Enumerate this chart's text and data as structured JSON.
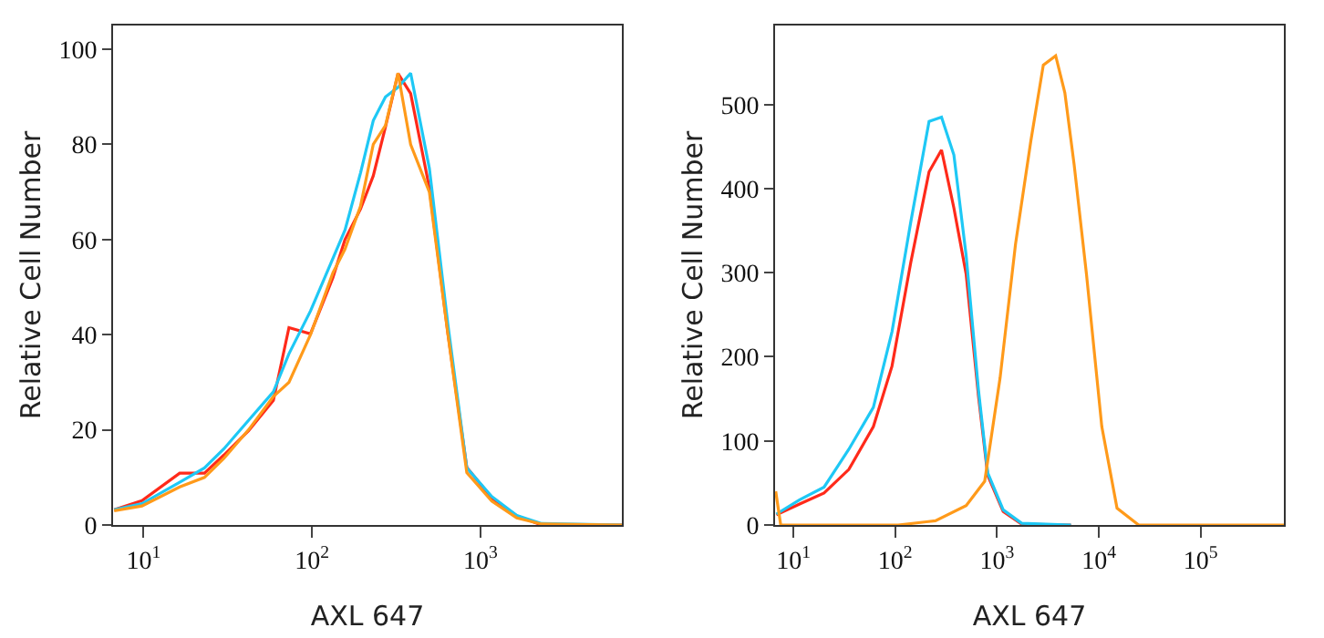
{
  "chart_data": [
    {
      "type": "line",
      "xlabel": "AXL 647",
      "ylabel": "Relative Cell Number",
      "log": "x",
      "grid": false,
      "marker": "none",
      "line_style": "solid",
      "xlim": [
        6.6,
        6900
      ],
      "ylim": [
        0,
        105
      ],
      "xticks": [
        {
          "value": 10,
          "label": "10$^{1}$"
        },
        {
          "value": 100,
          "label": "10$^{2}$"
        },
        {
          "value": 1000,
          "label": "10$^{3}$"
        }
      ],
      "yticks": [
        0,
        20,
        40,
        60,
        80,
        100
      ],
      "x": [
        6.7,
        9.8,
        16.4,
        23,
        30,
        42,
        59,
        73,
        98,
        133,
        157,
        194,
        231,
        273,
        324,
        385,
        497,
        641,
        829,
        1166,
        1641,
        2307,
        6900
      ],
      "series": [
        {
          "color": "#ff2a1a",
          "values": [
            3.2,
            5.1,
            10.9,
            10.9,
            14.7,
            19.8,
            26.2,
            41.5,
            40.2,
            52,
            60,
            66.4,
            73.4,
            83.7,
            94.9,
            90.7,
            70.9,
            40.2,
            12.1,
            5.7,
            1.9,
            0,
            0
          ]
        },
        {
          "color": "#1ec8f5",
          "values": [
            3.2,
            4.5,
            9,
            12,
            16,
            22,
            28,
            36,
            45,
            56,
            62,
            74,
            85,
            90,
            92,
            95,
            75,
            42,
            12,
            6,
            2,
            0.3,
            0
          ]
        },
        {
          "color": "#ff9a1a",
          "values": [
            3,
            4,
            8,
            10,
            14,
            20,
            27,
            30,
            40,
            53,
            58,
            67,
            80,
            84,
            95,
            80,
            70,
            40,
            11,
            5,
            1.5,
            0.2,
            0
          ]
        }
      ]
    },
    {
      "type": "line",
      "xlabel": "AXL 647",
      "ylabel": "Relative Cell Number",
      "log": "x",
      "grid": false,
      "marker": "none",
      "line_style": "solid",
      "xlim": [
        6.6,
        658000
      ],
      "ylim": [
        0,
        594
      ],
      "xticks": [
        {
          "value": 10,
          "label": "10$^{1}$"
        },
        {
          "value": 100,
          "label": "10$^{2}$"
        },
        {
          "value": 1000,
          "label": "10$^{3}$"
        },
        {
          "value": 10000,
          "label": "10$^{4}$"
        },
        {
          "value": 100000,
          "label": "10$^{5}$"
        }
      ],
      "yticks": [
        0,
        100,
        200,
        300,
        400,
        500
      ],
      "series": [
        {
          "color": "#ff2a1a",
          "x": [
            6.8,
            11.5,
            20,
            35,
            61,
            93,
            142,
            215,
            285,
            377,
            498,
            658,
            811,
            1150,
            1748,
            5330
          ],
          "values": [
            12,
            25,
            38,
            66,
            117,
            189,
            312,
            420,
            446,
            377,
            298,
            153,
            59,
            16,
            1,
            0
          ]
        },
        {
          "color": "#1ec8f5",
          "x": [
            6.8,
            11.5,
            20,
            35,
            61,
            93,
            142,
            215,
            285,
            377,
            498,
            658,
            811,
            1150,
            1748,
            5330
          ],
          "values": [
            13,
            30,
            45,
            90,
            140,
            230,
            360,
            480,
            485,
            440,
            320,
            160,
            62,
            18,
            2,
            0
          ]
        },
        {
          "color": "#ff9a1a",
          "x": [
            6.7,
            7.5,
            107,
            248,
            498,
            757,
            1072,
            1520,
            2150,
            2850,
            3770,
            4640,
            5730,
            7570,
            10700,
            15100,
            24600,
            658000
          ],
          "values": [
            40,
            0,
            0,
            5,
            23,
            52,
            175,
            334,
            457,
            547,
            558,
            514,
            428,
            298,
            117,
            20,
            0,
            0
          ]
        }
      ]
    }
  ]
}
